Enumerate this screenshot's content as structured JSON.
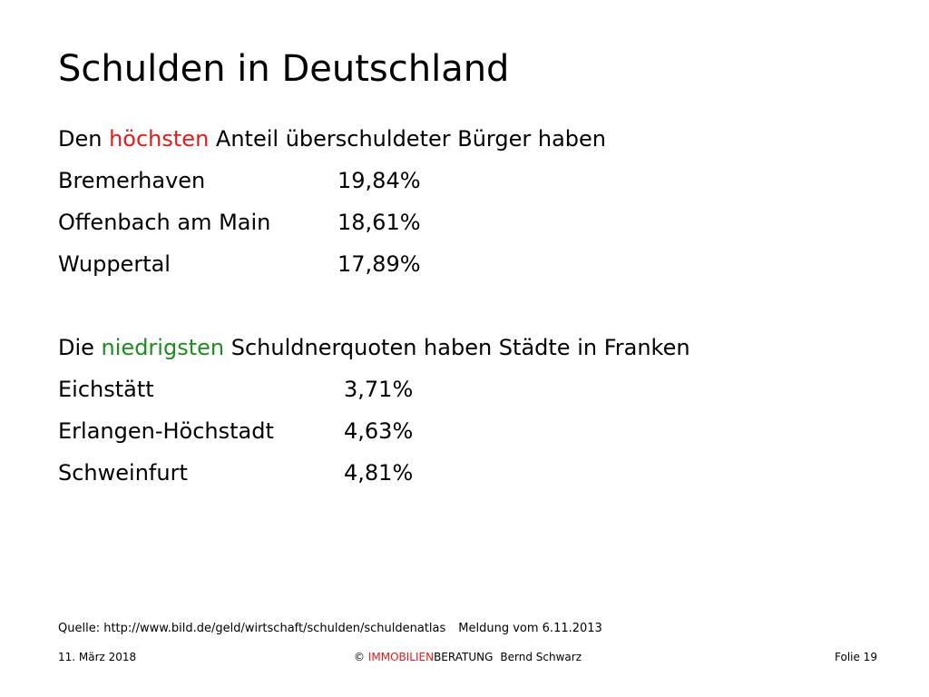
{
  "title": "Schulden in Deutschland",
  "highest": {
    "intro_prefix": "Den ",
    "intro_highlight": "höchsten",
    "intro_suffix": " Anteil überschuldeter Bürger haben",
    "rows": [
      {
        "city": "Bremerhaven",
        "value": "19,84%"
      },
      {
        "city": "Offenbach am Main",
        "value": "18,61%"
      },
      {
        "city": "Wuppertal",
        "value": "17,89%"
      }
    ]
  },
  "lowest": {
    "intro_prefix": "Die ",
    "intro_highlight": "niedrigsten",
    "intro_suffix": " Schuldnerquoten haben Städte in Franken",
    "rows": [
      {
        "city": "Eichstätt",
        "value": "3,71%"
      },
      {
        "city": "Erlangen-Höchstadt",
        "value": "4,63%"
      },
      {
        "city": "Schweinfurt",
        "value": "4,81%"
      }
    ]
  },
  "source": {
    "text": "Quelle: http://www.bild.de/geld/wirtschaft/schulden/schuldenatlas",
    "date": "Meldung vom 6.11.2013"
  },
  "footer": {
    "date": "11. März 2018",
    "copyright": "© ",
    "brand_red": "IMMOBILIEN",
    "brand_rest": "BERATUNG",
    "author": "Bernd Schwarz",
    "slide": "Folie 19"
  },
  "colors": {
    "highlight_red": "#e51b1b",
    "highlight_green": "#1f8c1f"
  }
}
